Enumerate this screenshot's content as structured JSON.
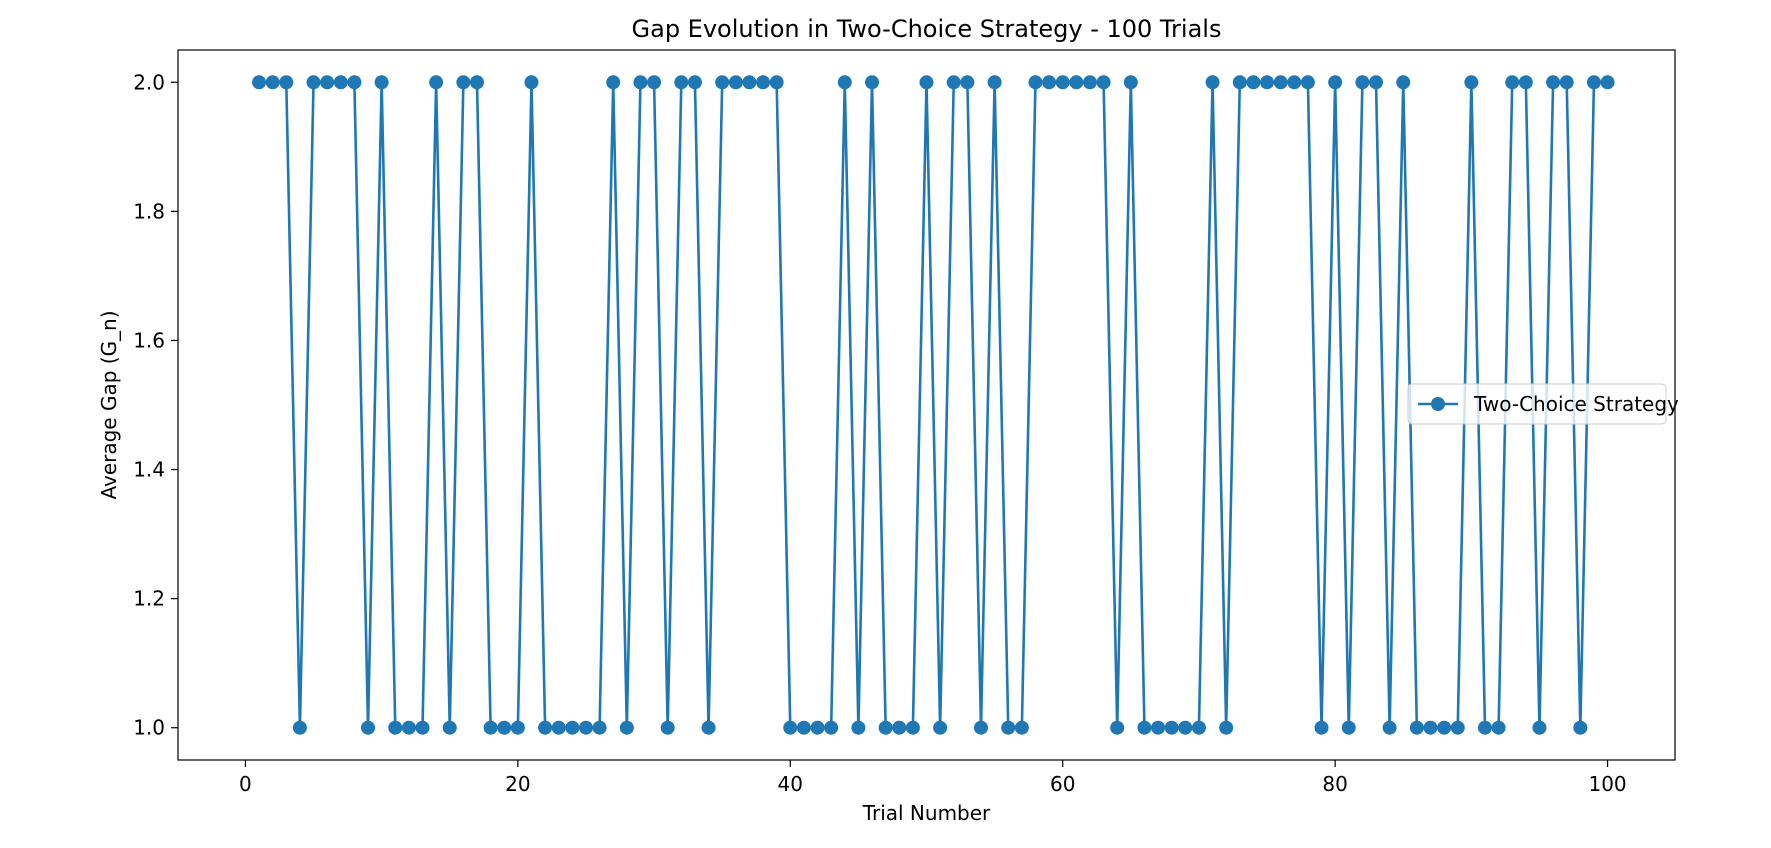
{
  "chart_data": {
    "type": "line",
    "title": "Gap Evolution in Two-Choice Strategy - 100 Trials",
    "xlabel": "Trial Number",
    "ylabel": "Average Gap (G_n)",
    "xlim": [
      -4.95,
      104.95
    ],
    "ylim": [
      0.95,
      2.05
    ],
    "x_ticks": [
      0,
      20,
      40,
      60,
      80,
      100
    ],
    "x_tick_labels": [
      "0",
      "20",
      "40",
      "60",
      "80",
      "100"
    ],
    "y_ticks": [
      1.0,
      1.2,
      1.4,
      1.6,
      1.8,
      2.0
    ],
    "y_tick_labels": [
      "1.0",
      "1.2",
      "1.4",
      "1.6",
      "1.8",
      "2.0"
    ],
    "grid": false,
    "legend_position": "center-right",
    "series": [
      {
        "name": "Two-Choice Strategy",
        "color": "#1f77b4",
        "marker": "circle",
        "x": [
          1,
          2,
          3,
          4,
          5,
          6,
          7,
          8,
          9,
          10,
          11,
          12,
          13,
          14,
          15,
          16,
          17,
          18,
          19,
          20,
          21,
          22,
          23,
          24,
          25,
          26,
          27,
          28,
          29,
          30,
          31,
          32,
          33,
          34,
          35,
          36,
          37,
          38,
          39,
          40,
          41,
          42,
          43,
          44,
          45,
          46,
          47,
          48,
          49,
          50,
          51,
          52,
          53,
          54,
          55,
          56,
          57,
          58,
          59,
          60,
          61,
          62,
          63,
          64,
          65,
          66,
          67,
          68,
          69,
          70,
          71,
          72,
          73,
          74,
          75,
          76,
          77,
          78,
          79,
          80,
          81,
          82,
          83,
          84,
          85,
          86,
          87,
          88,
          89,
          90,
          91,
          92,
          93,
          94,
          95,
          96,
          97,
          98,
          99,
          100
        ],
        "y": [
          2,
          2,
          2,
          1,
          2,
          2,
          2,
          2,
          1,
          2,
          1,
          1,
          1,
          2,
          1,
          2,
          2,
          1,
          1,
          1,
          2,
          1,
          1,
          1,
          1,
          1,
          2,
          1,
          2,
          2,
          1,
          2,
          2,
          1,
          2,
          2,
          2,
          2,
          2,
          1,
          1,
          1,
          1,
          2,
          1,
          2,
          1,
          1,
          1,
          2,
          1,
          2,
          2,
          1,
          2,
          1,
          1,
          2,
          2,
          2,
          2,
          2,
          2,
          1,
          2,
          1,
          1,
          1,
          1,
          1,
          2,
          1,
          2,
          2,
          2,
          2,
          2,
          2,
          1,
          2,
          1,
          2,
          2,
          1,
          2,
          1,
          1,
          1,
          1,
          2,
          1,
          1,
          2,
          2,
          1,
          2,
          2,
          1,
          2,
          2
        ]
      }
    ]
  }
}
